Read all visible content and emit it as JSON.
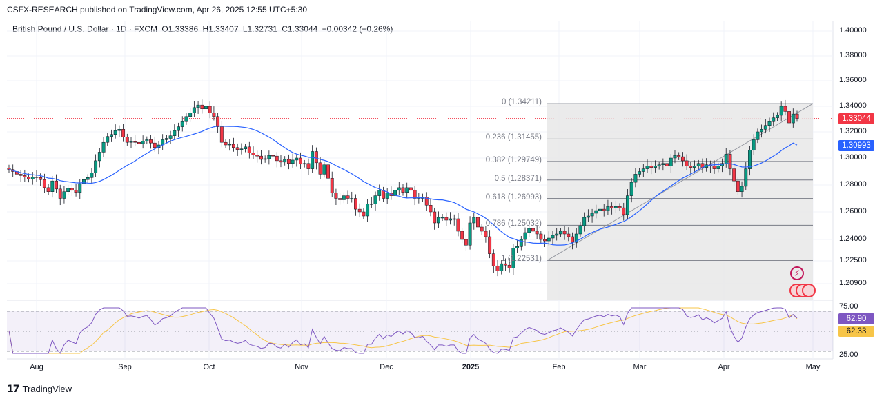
{
  "header": {
    "title": "CSFX-RESEARCH published on TradingView.com, Apr 26, 2025 12:55 UTC+5:30"
  },
  "legend": {
    "symbol": "British Pound / U.S. Dollar · 1D · FXCM",
    "open": "O1.33386",
    "high": "H1.33407",
    "low": "L1.32731",
    "close": "C1.33044",
    "change": "−0.00342 (−0.26%)"
  },
  "price_axis": [
    "1.40000",
    "1.38000",
    "1.36000",
    "1.34000",
    "1.32000",
    "1.30000",
    "1.28000",
    "1.26000",
    "1.24000",
    "1.22500",
    "1.20900"
  ],
  "time_axis": [
    "Aug",
    "Sep",
    "Oct",
    "Nov",
    "Dec",
    "2025",
    "Feb",
    "Mar",
    "Apr",
    "May"
  ],
  "tags": {
    "last_price": "1.33044",
    "ma_value": "1.30993",
    "rsi": "62.90",
    "rsi_ma": "62.33"
  },
  "rsi_axis": [
    "75.00",
    "25.00"
  ],
  "fib_levels": [
    {
      "label": "0 (1.34211)",
      "price": 1.34211
    },
    {
      "label": "0.236 (1.31455)",
      "price": 1.31455
    },
    {
      "label": "0.382 (1.29749)",
      "price": 1.29749
    },
    {
      "label": "0.5 (1.28371)",
      "price": 1.28371
    },
    {
      "label": "0.618 (1.26993)",
      "price": 1.26993
    },
    {
      "label": "0.786 (1.25032)",
      "price": 1.25032
    },
    {
      "label": "1 (1.22531)",
      "price": 1.22531
    }
  ],
  "colors": {
    "up": "#089981",
    "down": "#f23645",
    "ma": "#2962ff",
    "rsi": "#7e57c2",
    "rsi_ma": "#f7c548",
    "last_price_tag": "#f23645",
    "ma_tag": "#2962ff",
    "rsi_tag": "#7e57c2",
    "rsi_ma_tag": "#f7c548"
  },
  "footer": {
    "brand": "TradingView"
  },
  "chart_data": {
    "type": "candlestick",
    "title": "British Pound / U.S. Dollar · 1D · FXCM",
    "ylim": [
      1.2,
      1.4
    ],
    "x_range": [
      "2024-07-15",
      "2025-04-25"
    ],
    "closes": [
      1.2915,
      1.29,
      1.288,
      1.287,
      1.286,
      1.2845,
      1.286,
      1.2855,
      1.284,
      1.278,
      1.275,
      1.283,
      1.277,
      1.27,
      1.275,
      1.2775,
      1.276,
      1.2745,
      1.281,
      1.284,
      1.2855,
      1.289,
      1.298,
      1.3045,
      1.312,
      1.3165,
      1.318,
      1.321,
      1.322,
      1.316,
      1.312,
      1.3125,
      1.312,
      1.311,
      1.313,
      1.314,
      1.3115,
      1.308,
      1.31,
      1.314,
      1.315,
      1.317,
      1.321,
      1.324,
      1.328,
      1.332,
      1.335,
      1.339,
      1.341,
      1.338,
      1.34,
      1.335,
      1.332,
      1.324,
      1.312,
      1.31,
      1.3105,
      1.308,
      1.3065,
      1.307,
      1.3085,
      1.304,
      1.3025,
      1.3015,
      1.299,
      1.2995,
      1.302,
      1.3015,
      1.298,
      1.297,
      1.299,
      1.296,
      1.2985,
      1.3,
      1.2955,
      1.296,
      1.292,
      1.305,
      1.2965,
      1.288,
      1.295,
      1.285,
      1.274,
      1.27,
      1.269,
      1.272,
      1.27,
      1.27,
      1.262,
      1.26,
      1.257,
      1.266,
      1.266,
      1.272,
      1.276,
      1.27,
      1.274,
      1.272,
      1.276,
      1.278,
      1.2745,
      1.278,
      1.276,
      1.27,
      1.27,
      1.271,
      1.265,
      1.26,
      1.252,
      1.256,
      1.256,
      1.254,
      1.255,
      1.255,
      1.246,
      1.24,
      1.236,
      1.252,
      1.256,
      1.249,
      1.246,
      1.242,
      1.23,
      1.2215,
      1.218,
      1.223,
      1.222,
      1.22,
      1.234,
      1.235,
      1.24,
      1.245,
      1.248,
      1.246,
      1.244,
      1.24,
      1.239,
      1.241,
      1.243,
      1.244,
      1.246,
      1.244,
      1.242,
      1.238,
      1.244,
      1.25,
      1.256,
      1.257,
      1.259,
      1.261,
      1.262,
      1.261,
      1.264,
      1.263,
      1.264,
      1.263,
      1.258,
      1.272,
      1.282,
      1.288,
      1.29,
      1.292,
      1.294,
      1.293,
      1.294,
      1.295,
      1.296,
      1.294,
      1.3,
      1.302,
      1.301,
      1.298,
      1.294,
      1.293,
      1.294,
      1.296,
      1.293,
      1.295,
      1.294,
      1.292,
      1.294,
      1.296,
      1.303,
      1.292,
      1.283,
      1.275,
      1.279,
      1.292,
      1.306,
      1.314,
      1.32,
      1.322,
      1.325,
      1.328,
      1.331,
      1.333,
      1.34,
      1.336,
      1.327,
      1.334,
      1.3304
    ],
    "moving_average": {
      "last": 1.30993
    },
    "fib_retracement": {
      "high": 1.34211,
      "low": 1.22531
    },
    "rsi": {
      "value": 62.9,
      "ma": 62.33,
      "ylim": [
        25,
        75
      ]
    }
  }
}
